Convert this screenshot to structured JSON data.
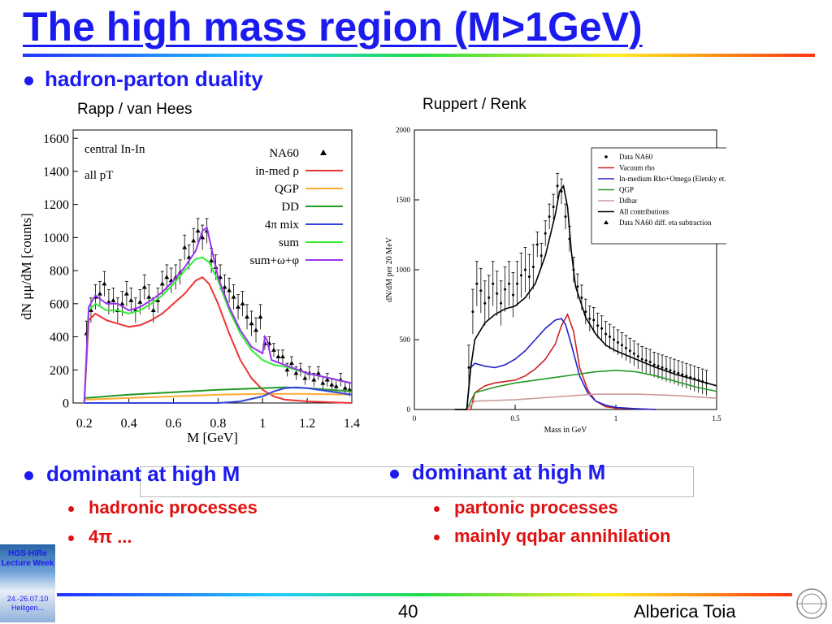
{
  "slide": {
    "title": "The high mass region (M>1GeV)",
    "bullet": "hadron-parton duality",
    "left_caption": "Rapp / van Hees",
    "right_caption": "Ruppert / Renk",
    "left_dominant": "dominant at high M",
    "right_dominant": "dominant at high M",
    "left_subs": [
      "hadronic processes",
      "4π ..."
    ],
    "right_subs": [
      "partonic processes",
      "mainly qqbar annihilation"
    ],
    "page_number": "40",
    "author": "Alberica Toia",
    "logo_text": "HGS-HIRe Lecture Week",
    "logo_date": "24.-26.07.10 Heiligen..."
  },
  "chart_data": [
    {
      "type": "line",
      "xlabel": "M [GeV]",
      "ylabel": "dN μμ/dM [counts]",
      "xlim": [
        0.15,
        1.4
      ],
      "ylim": [
        0,
        1650
      ],
      "xticks": [
        "0.2",
        "0.4",
        "0.6",
        "0.8",
        "1",
        "1.2",
        "1.4"
      ],
      "yticks": [
        "0",
        "200",
        "400",
        "600",
        "800",
        "1000",
        "1200",
        "1400",
        "1600"
      ],
      "annotations": [
        "central In-In",
        "all pT"
      ],
      "legend_placement": "top-right",
      "series": [
        {
          "name": "NA60",
          "color": "#000000",
          "kind": "points",
          "x": [
            0.21,
            0.23,
            0.25,
            0.27,
            0.29,
            0.31,
            0.33,
            0.35,
            0.37,
            0.39,
            0.41,
            0.43,
            0.45,
            0.47,
            0.49,
            0.51,
            0.53,
            0.55,
            0.57,
            0.59,
            0.61,
            0.63,
            0.65,
            0.67,
            0.69,
            0.71,
            0.73,
            0.75,
            0.77,
            0.79,
            0.81,
            0.83,
            0.85,
            0.87,
            0.89,
            0.91,
            0.93,
            0.95,
            0.97,
            0.99,
            1.01,
            1.03,
            1.05,
            1.07,
            1.09,
            1.11,
            1.13,
            1.15,
            1.17,
            1.19,
            1.21,
            1.23,
            1.25,
            1.27,
            1.29,
            1.31,
            1.33,
            1.35,
            1.37,
            1.39
          ],
          "y": [
            420,
            560,
            640,
            660,
            720,
            610,
            620,
            560,
            600,
            660,
            620,
            560,
            610,
            700,
            640,
            560,
            620,
            720,
            760,
            740,
            760,
            790,
            940,
            880,
            980,
            1040,
            1000,
            1040,
            860,
            820,
            760,
            700,
            680,
            640,
            580,
            600,
            520,
            480,
            440,
            520,
            360,
            360,
            320,
            280,
            280,
            200,
            240,
            180,
            200,
            150,
            180,
            140,
            180,
            120,
            140,
            110,
            100,
            140,
            90,
            80
          ]
        },
        {
          "name": "in-med ρ",
          "color": "#ee3333",
          "x": [
            0.2,
            0.22,
            0.25,
            0.3,
            0.35,
            0.4,
            0.45,
            0.5,
            0.55,
            0.6,
            0.65,
            0.7,
            0.73,
            0.76,
            0.8,
            0.85,
            0.9,
            0.95,
            1.0,
            1.05,
            1.1,
            1.2,
            1.3,
            1.4
          ],
          "y": [
            0,
            500,
            540,
            500,
            480,
            460,
            470,
            500,
            540,
            600,
            660,
            740,
            760,
            720,
            600,
            420,
            260,
            150,
            80,
            40,
            20,
            10,
            5,
            0
          ]
        },
        {
          "name": "QGP",
          "color": "#ffaa33",
          "x": [
            0.2,
            0.4,
            0.6,
            0.8,
            1.0,
            1.2,
            1.4
          ],
          "y": [
            20,
            30,
            40,
            50,
            55,
            55,
            50
          ]
        },
        {
          "name": "DD",
          "color": "#229922",
          "x": [
            0.2,
            0.4,
            0.6,
            0.8,
            1.0,
            1.1,
            1.2,
            1.3,
            1.4
          ],
          "y": [
            30,
            50,
            65,
            80,
            90,
            95,
            90,
            80,
            70
          ]
        },
        {
          "name": "4π mix",
          "color": "#3344dd",
          "x": [
            0.2,
            0.8,
            0.9,
            1.0,
            1.05,
            1.1,
            1.15,
            1.2,
            1.3,
            1.4
          ],
          "y": [
            0,
            0,
            10,
            40,
            70,
            90,
            95,
            90,
            70,
            50
          ]
        },
        {
          "name": "sum",
          "color": "#33ee33",
          "x": [
            0.2,
            0.22,
            0.25,
            0.3,
            0.35,
            0.4,
            0.45,
            0.5,
            0.55,
            0.6,
            0.65,
            0.7,
            0.73,
            0.76,
            0.8,
            0.85,
            0.9,
            0.95,
            1.0,
            1.05,
            1.1,
            1.2,
            1.3,
            1.4
          ],
          "y": [
            0,
            560,
            600,
            560,
            560,
            540,
            560,
            600,
            650,
            720,
            800,
            870,
            880,
            850,
            740,
            560,
            420,
            320,
            260,
            230,
            220,
            180,
            150,
            120
          ]
        },
        {
          "name": "sum+ω+φ",
          "color": "#9933ee",
          "x": [
            0.2,
            0.22,
            0.25,
            0.3,
            0.35,
            0.4,
            0.45,
            0.5,
            0.55,
            0.6,
            0.65,
            0.7,
            0.73,
            0.75,
            0.77,
            0.8,
            0.85,
            0.9,
            0.95,
            1.0,
            1.01,
            1.02,
            1.04,
            1.1,
            1.2,
            1.3,
            1.4
          ],
          "y": [
            0,
            580,
            650,
            600,
            600,
            560,
            580,
            620,
            670,
            740,
            820,
            920,
            1040,
            1060,
            940,
            760,
            580,
            440,
            340,
            300,
            400,
            380,
            260,
            230,
            180,
            150,
            120
          ]
        }
      ]
    },
    {
      "type": "line",
      "xlabel": "Mass in GeV",
      "ylabel": "dN/dM per 20 MeV",
      "xlim": [
        0,
        1.5
      ],
      "ylim": [
        0,
        2000
      ],
      "xticks": [
        "0",
        "0.5",
        "1",
        "1.5"
      ],
      "yticks": [
        "0",
        "500",
        "1000",
        "1500",
        "2000"
      ],
      "legend_placement": "top-right",
      "series": [
        {
          "name": "Data NA60",
          "color": "#000000",
          "kind": "points",
          "x": [
            0.27,
            0.29,
            0.31,
            0.33,
            0.35,
            0.37,
            0.39,
            0.41,
            0.43,
            0.45,
            0.47,
            0.49,
            0.51,
            0.53,
            0.55,
            0.57,
            0.59,
            0.61,
            0.63,
            0.65,
            0.67,
            0.69,
            0.71,
            0.73,
            0.75,
            0.77,
            0.79,
            0.81,
            0.83,
            0.85,
            0.87,
            0.89,
            0.91,
            0.93,
            0.95,
            0.97,
            0.99,
            1.01,
            1.03,
            1.05,
            1.07,
            1.09,
            1.11,
            1.13,
            1.15,
            1.17,
            1.19,
            1.21,
            1.23,
            1.25,
            1.27,
            1.29,
            1.31,
            1.33,
            1.35,
            1.37,
            1.39,
            1.41,
            1.43,
            1.45
          ],
          "y": [
            300,
            700,
            900,
            850,
            760,
            800,
            900,
            830,
            760,
            860,
            900,
            820,
            900,
            960,
            1000,
            950,
            1020,
            1180,
            1100,
            1260,
            1380,
            1450,
            1600,
            1560,
            1380,
            1220,
            1000,
            880,
            800,
            700,
            650,
            640,
            600,
            580,
            540,
            520,
            500,
            480,
            460,
            440,
            420,
            400,
            380,
            360,
            350,
            340,
            320,
            310,
            300,
            290,
            280,
            270,
            260,
            250,
            240,
            230,
            220,
            210,
            200,
            190
          ]
        },
        {
          "name": "Vacuum rho",
          "color": "#cc2222",
          "x": [
            0.2,
            0.28,
            0.3,
            0.35,
            0.4,
            0.45,
            0.5,
            0.55,
            0.6,
            0.65,
            0.7,
            0.73,
            0.76,
            0.79,
            0.82,
            0.86,
            0.9,
            0.95,
            1.0,
            1.1,
            1.2
          ],
          "y": [
            0,
            0,
            120,
            170,
            190,
            200,
            210,
            240,
            290,
            360,
            470,
            600,
            680,
            560,
            300,
            140,
            60,
            20,
            10,
            5,
            0
          ]
        },
        {
          "name": "In-medium Rho+Omega (Eletsky et. al)",
          "color": "#2222cc",
          "x": [
            0.2,
            0.26,
            0.28,
            0.3,
            0.35,
            0.4,
            0.45,
            0.5,
            0.55,
            0.6,
            0.65,
            0.7,
            0.73,
            0.75,
            0.78,
            0.82,
            0.86,
            0.9,
            0.95,
            1.0,
            1.1,
            1.2
          ],
          "y": [
            0,
            0,
            300,
            330,
            310,
            300,
            320,
            360,
            420,
            500,
            580,
            640,
            650,
            610,
            460,
            240,
            120,
            60,
            30,
            15,
            5,
            0
          ]
        },
        {
          "name": "QGP",
          "color": "#229922",
          "x": [
            0.2,
            0.26,
            0.3,
            0.4,
            0.5,
            0.6,
            0.7,
            0.8,
            0.9,
            1.0,
            1.1,
            1.2,
            1.3,
            1.4,
            1.5
          ],
          "y": [
            0,
            0,
            120,
            160,
            190,
            210,
            230,
            250,
            270,
            280,
            270,
            240,
            200,
            160,
            130
          ]
        },
        {
          "name": "Ddbar",
          "color": "#cc9999",
          "x": [
            0.2,
            0.26,
            0.3,
            0.5,
            0.7,
            0.9,
            1.1,
            1.3,
            1.5
          ],
          "y": [
            0,
            0,
            60,
            70,
            90,
            110,
            110,
            100,
            80
          ]
        },
        {
          "name": "All contributions",
          "color": "#000000",
          "x": [
            0.2,
            0.26,
            0.28,
            0.3,
            0.35,
            0.4,
            0.45,
            0.5,
            0.55,
            0.6,
            0.65,
            0.7,
            0.72,
            0.74,
            0.76,
            0.78,
            0.8,
            0.85,
            0.9,
            0.95,
            1.0,
            1.1,
            1.2,
            1.3,
            1.4,
            1.5
          ],
          "y": [
            0,
            0,
            300,
            500,
            620,
            680,
            720,
            740,
            800,
            900,
            1100,
            1400,
            1560,
            1600,
            1450,
            1120,
            880,
            660,
            540,
            460,
            420,
            360,
            300,
            250,
            210,
            170
          ]
        },
        {
          "name": "Data NA60 diff. eta subtraction",
          "color": "#000000",
          "kind": "points",
          "x": [],
          "y": []
        }
      ]
    }
  ]
}
